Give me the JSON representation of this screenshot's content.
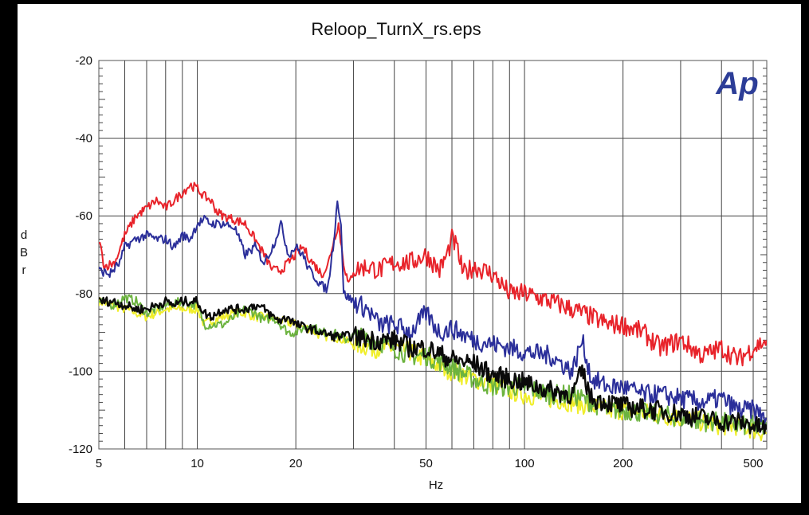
{
  "chart_data": {
    "type": "line",
    "title": "Reloop_TurnX_rs.eps",
    "xlabel": "Hz",
    "ylabel": "dBr",
    "x_scale": "log",
    "xlim": [
      5,
      550
    ],
    "ylim": [
      -120,
      -20
    ],
    "grid": true,
    "x_ticks": [
      5,
      10,
      20,
      50,
      100,
      200,
      500
    ],
    "y_ticks": [
      -20,
      -40,
      -60,
      -80,
      -100,
      -120
    ],
    "logo": "Ap",
    "colors": {
      "red": "#e8232a",
      "blue": "#2b2f9a",
      "green": "#6cb33f",
      "yellow": "#f0ee2a",
      "black": "#0a0a0a"
    },
    "series": [
      {
        "color": "red",
        "points": [
          [
            5,
            -66
          ],
          [
            5.2,
            -73
          ],
          [
            5.6,
            -72
          ],
          [
            6,
            -65
          ],
          [
            6.5,
            -60
          ],
          [
            7,
            -58
          ],
          [
            7.5,
            -56
          ],
          [
            8,
            -58
          ],
          [
            8.5,
            -56
          ],
          [
            9,
            -54
          ],
          [
            9.5,
            -52
          ],
          [
            10,
            -53
          ],
          [
            10.5,
            -55
          ],
          [
            11,
            -56
          ],
          [
            11.5,
            -59
          ],
          [
            12,
            -60
          ],
          [
            13,
            -61
          ],
          [
            14,
            -62
          ],
          [
            15,
            -66
          ],
          [
            16,
            -70
          ],
          [
            17,
            -74
          ],
          [
            18,
            -74
          ],
          [
            19,
            -72
          ],
          [
            20,
            -70
          ],
          [
            21,
            -68
          ],
          [
            22,
            -71
          ],
          [
            23,
            -73
          ],
          [
            24,
            -75
          ],
          [
            25,
            -73
          ],
          [
            26,
            -67
          ],
          [
            27,
            -62
          ],
          [
            28,
            -72
          ],
          [
            29,
            -78
          ],
          [
            30,
            -74
          ],
          [
            33,
            -73
          ],
          [
            36,
            -74
          ],
          [
            40,
            -72
          ],
          [
            45,
            -72
          ],
          [
            50,
            -70
          ],
          [
            55,
            -74
          ],
          [
            58,
            -70
          ],
          [
            60,
            -66
          ],
          [
            62,
            -68
          ],
          [
            65,
            -75
          ],
          [
            70,
            -73
          ],
          [
            80,
            -75
          ],
          [
            90,
            -80
          ],
          [
            100,
            -80
          ],
          [
            120,
            -82
          ],
          [
            140,
            -84
          ],
          [
            160,
            -86
          ],
          [
            180,
            -88
          ],
          [
            200,
            -88
          ],
          [
            230,
            -90
          ],
          [
            260,
            -94
          ],
          [
            300,
            -92
          ],
          [
            350,
            -96
          ],
          [
            400,
            -94
          ],
          [
            450,
            -97
          ],
          [
            500,
            -94
          ],
          [
            550,
            -92
          ]
        ]
      },
      {
        "color": "blue",
        "points": [
          [
            5,
            -74
          ],
          [
            5.4,
            -75
          ],
          [
            5.8,
            -72
          ],
          [
            6,
            -68
          ],
          [
            6.5,
            -66
          ],
          [
            7,
            -65
          ],
          [
            7.5,
            -66
          ],
          [
            8,
            -66
          ],
          [
            8.5,
            -68
          ],
          [
            9,
            -65
          ],
          [
            9.5,
            -66
          ],
          [
            10,
            -62
          ],
          [
            10.5,
            -61
          ],
          [
            11,
            -62
          ],
          [
            12,
            -62
          ],
          [
            13,
            -63
          ],
          [
            14,
            -70
          ],
          [
            15,
            -68
          ],
          [
            16,
            -72
          ],
          [
            17,
            -68
          ],
          [
            18,
            -62
          ],
          [
            19,
            -70
          ],
          [
            20,
            -68
          ],
          [
            21,
            -70
          ],
          [
            22,
            -74
          ],
          [
            23,
            -76
          ],
          [
            24,
            -78
          ],
          [
            25,
            -79
          ],
          [
            26,
            -68
          ],
          [
            26.8,
            -56
          ],
          [
            27.5,
            -62
          ],
          [
            28,
            -80
          ],
          [
            30,
            -82
          ],
          [
            33,
            -84
          ],
          [
            36,
            -88
          ],
          [
            40,
            -88
          ],
          [
            45,
            -90
          ],
          [
            50,
            -85
          ],
          [
            55,
            -90
          ],
          [
            60,
            -89
          ],
          [
            70,
            -92
          ],
          [
            80,
            -93
          ],
          [
            90,
            -94
          ],
          [
            100,
            -95
          ],
          [
            120,
            -96
          ],
          [
            140,
            -100
          ],
          [
            150,
            -92
          ],
          [
            160,
            -102
          ],
          [
            180,
            -104
          ],
          [
            200,
            -104
          ],
          [
            230,
            -106
          ],
          [
            260,
            -106
          ],
          [
            300,
            -107
          ],
          [
            350,
            -108
          ],
          [
            400,
            -107
          ],
          [
            450,
            -110
          ],
          [
            500,
            -110
          ],
          [
            550,
            -112
          ]
        ]
      },
      {
        "color": "green",
        "points": [
          [
            5,
            -82
          ],
          [
            5.5,
            -83
          ],
          [
            6,
            -81
          ],
          [
            6.5,
            -82
          ],
          [
            7,
            -85
          ],
          [
            7.5,
            -84
          ],
          [
            8,
            -83
          ],
          [
            9,
            -82
          ],
          [
            10,
            -83
          ],
          [
            10.5,
            -88
          ],
          [
            11,
            -88
          ],
          [
            12,
            -88
          ],
          [
            13,
            -86
          ],
          [
            14,
            -84
          ],
          [
            15,
            -85
          ],
          [
            16,
            -87
          ],
          [
            17,
            -86
          ],
          [
            18,
            -88
          ],
          [
            19,
            -90
          ],
          [
            20,
            -90
          ],
          [
            22,
            -88
          ],
          [
            24,
            -90
          ],
          [
            26,
            -90
          ],
          [
            28,
            -92
          ],
          [
            30,
            -91
          ],
          [
            35,
            -92
          ],
          [
            40,
            -94
          ],
          [
            45,
            -96
          ],
          [
            50,
            -96
          ],
          [
            60,
            -99
          ],
          [
            70,
            -102
          ],
          [
            80,
            -104
          ],
          [
            90,
            -104
          ],
          [
            100,
            -104
          ],
          [
            120,
            -106
          ],
          [
            140,
            -106
          ],
          [
            160,
            -108
          ],
          [
            180,
            -110
          ],
          [
            200,
            -110
          ],
          [
            250,
            -111
          ],
          [
            300,
            -112
          ],
          [
            350,
            -113
          ],
          [
            400,
            -113
          ],
          [
            450,
            -114
          ],
          [
            500,
            -114
          ],
          [
            550,
            -115
          ]
        ]
      },
      {
        "color": "yellow",
        "points": [
          [
            5,
            -82
          ],
          [
            5.5,
            -83
          ],
          [
            6,
            -84
          ],
          [
            6.5,
            -85
          ],
          [
            7,
            -86
          ],
          [
            7.5,
            -85
          ],
          [
            8,
            -84
          ],
          [
            9,
            -84
          ],
          [
            10,
            -84
          ],
          [
            10.5,
            -88
          ],
          [
            11,
            -87
          ],
          [
            12,
            -86
          ],
          [
            13,
            -85
          ],
          [
            14,
            -85
          ],
          [
            15,
            -86
          ],
          [
            16,
            -86
          ],
          [
            18,
            -87
          ],
          [
            20,
            -88
          ],
          [
            22,
            -89
          ],
          [
            24,
            -91
          ],
          [
            26,
            -91
          ],
          [
            28,
            -92
          ],
          [
            30,
            -93
          ],
          [
            35,
            -94
          ],
          [
            40,
            -94
          ],
          [
            45,
            -95
          ],
          [
            50,
            -97
          ],
          [
            60,
            -100
          ],
          [
            70,
            -102
          ],
          [
            80,
            -103
          ],
          [
            90,
            -105
          ],
          [
            100,
            -106
          ],
          [
            120,
            -107
          ],
          [
            140,
            -108
          ],
          [
            160,
            -109
          ],
          [
            180,
            -110
          ],
          [
            200,
            -110
          ],
          [
            250,
            -111
          ],
          [
            300,
            -112
          ],
          [
            350,
            -113
          ],
          [
            400,
            -114
          ],
          [
            450,
            -114
          ],
          [
            500,
            -115
          ],
          [
            550,
            -116
          ]
        ]
      },
      {
        "color": "black",
        "points": [
          [
            5,
            -82
          ],
          [
            5.5,
            -82
          ],
          [
            6,
            -83
          ],
          [
            6.5,
            -84
          ],
          [
            7,
            -84
          ],
          [
            7.5,
            -83
          ],
          [
            8,
            -82
          ],
          [
            8.5,
            -83
          ],
          [
            9,
            -82
          ],
          [
            10,
            -82
          ],
          [
            10.5,
            -85
          ],
          [
            11,
            -86
          ],
          [
            12,
            -84
          ],
          [
            13,
            -84
          ],
          [
            14,
            -84
          ],
          [
            15,
            -83
          ],
          [
            16,
            -84
          ],
          [
            17,
            -86
          ],
          [
            18,
            -87
          ],
          [
            19,
            -86
          ],
          [
            20,
            -88
          ],
          [
            22,
            -89
          ],
          [
            24,
            -90
          ],
          [
            26,
            -91
          ],
          [
            28,
            -91
          ],
          [
            30,
            -91
          ],
          [
            35,
            -92
          ],
          [
            40,
            -92
          ],
          [
            45,
            -94
          ],
          [
            50,
            -94
          ],
          [
            60,
            -97
          ],
          [
            70,
            -98
          ],
          [
            80,
            -101
          ],
          [
            90,
            -102
          ],
          [
            100,
            -103
          ],
          [
            120,
            -105
          ],
          [
            140,
            -106
          ],
          [
            150,
            -100
          ],
          [
            160,
            -107
          ],
          [
            180,
            -108
          ],
          [
            200,
            -109
          ],
          [
            250,
            -110
          ],
          [
            300,
            -111
          ],
          [
            350,
            -112
          ],
          [
            400,
            -113
          ],
          [
            450,
            -113
          ],
          [
            500,
            -114
          ],
          [
            550,
            -115
          ]
        ]
      }
    ]
  }
}
